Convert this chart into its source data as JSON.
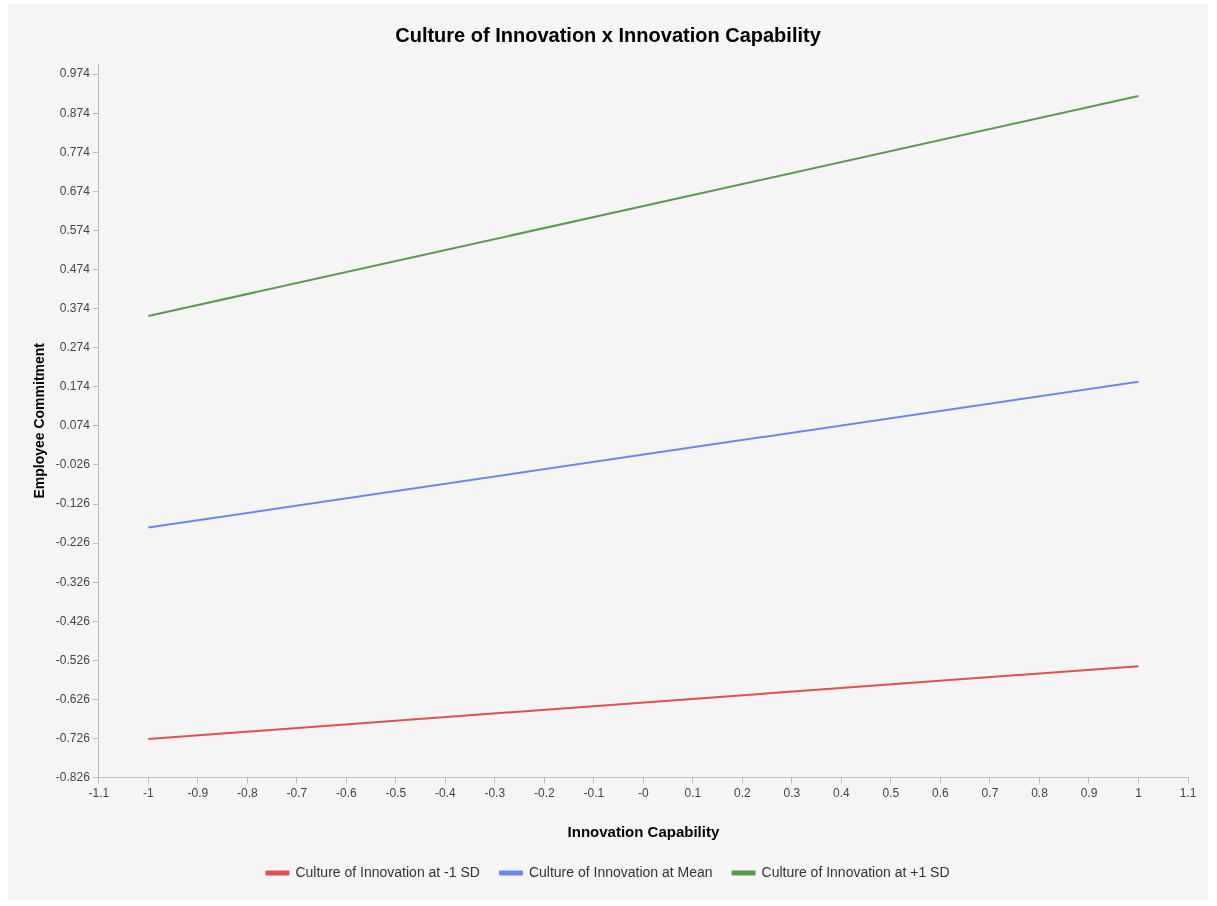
{
  "chart_data": {
    "type": "line",
    "title": "Culture of Innovation x Innovation Capability",
    "xlabel": "Innovation Capability",
    "ylabel": "Employee Commitment",
    "x": [
      -1,
      1
    ],
    "series": [
      {
        "name": "Culture of Innovation at -1 SD",
        "color": "#e05050",
        "values": [
          -0.727,
          -0.541
        ]
      },
      {
        "name": "Culture of Innovation at Mean",
        "color": "#6b86f0",
        "values": [
          -0.186,
          0.187
        ]
      },
      {
        "name": "Culture of Innovation at +1 SD",
        "color": "#5a9a50",
        "values": [
          0.355,
          0.918
        ]
      }
    ],
    "xlim": [
      -1.1,
      1.1
    ],
    "xticks": [
      -1.1,
      -1,
      -0.9,
      -0.8,
      -0.7,
      -0.6,
      -0.5,
      -0.4,
      -0.3,
      -0.2,
      -0.1,
      {
        "value": 0,
        "label": "-0"
      },
      0.1,
      0.2,
      0.3,
      0.4,
      0.5,
      0.6,
      0.7,
      0.8,
      0.9,
      1,
      1.1
    ],
    "ylim": [
      -0.826,
      1.0
    ],
    "yticks": [
      -0.826,
      -0.726,
      -0.626,
      -0.526,
      -0.426,
      -0.326,
      -0.226,
      -0.126,
      -0.026,
      0.074,
      0.174,
      0.274,
      0.374,
      0.474,
      0.574,
      0.674,
      0.774,
      0.874,
      0.974
    ],
    "grid": false,
    "legend": "bottom",
    "marker": "none",
    "line_style": "solid"
  }
}
